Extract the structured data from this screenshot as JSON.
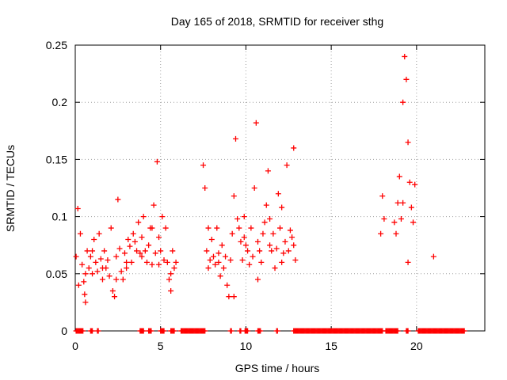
{
  "chart_data": {
    "type": "scatter",
    "title": "Day 165 of 2018, SRMTID for receiver sthg",
    "xlabel": "GPS time / hours",
    "ylabel": "SRMTID / TECUs",
    "xlim": [
      0,
      24
    ],
    "ylim": [
      0,
      0.25
    ],
    "xticks": [
      0,
      5,
      10,
      15,
      20
    ],
    "xtick_labels": [
      "0",
      "5",
      "10",
      "15",
      "20"
    ],
    "yticks": [
      0,
      0.05,
      0.1,
      0.15,
      0.2,
      0.25
    ],
    "ytick_labels": [
      "0",
      "0.05",
      "0.1",
      "0.15",
      "0.2",
      "0.25"
    ],
    "grid": true,
    "marker": "+",
    "series": [
      {
        "name": "SRMTID",
        "color": "#ff0000",
        "x": [
          0.05,
          0.15,
          0.3,
          0.4,
          0.5,
          0.55,
          0.6,
          0.7,
          0.8,
          0.9,
          1.0,
          1.1,
          1.2,
          1.3,
          1.4,
          1.5,
          1.6,
          1.7,
          1.8,
          1.9,
          2.0,
          2.1,
          2.2,
          2.3,
          2.4,
          2.5,
          2.6,
          2.7,
          2.8,
          2.9,
          3.0,
          3.1,
          3.2,
          3.3,
          3.4,
          3.5,
          3.6,
          3.7,
          3.8,
          3.9,
          4.0,
          4.1,
          4.2,
          4.3,
          4.4,
          4.5,
          4.6,
          4.7,
          4.8,
          4.9,
          5.0,
          5.1,
          5.2,
          5.3,
          5.4,
          5.5,
          5.6,
          5.7,
          5.8,
          5.9,
          7.5,
          7.6,
          7.7,
          7.8,
          7.9,
          8.0,
          8.1,
          8.2,
          8.3,
          8.4,
          8.5,
          8.6,
          8.7,
          8.8,
          8.9,
          9.0,
          9.1,
          9.2,
          9.3,
          9.4,
          9.5,
          9.6,
          9.7,
          9.8,
          9.9,
          10.0,
          10.1,
          10.2,
          10.3,
          10.4,
          10.5,
          10.6,
          10.7,
          10.8,
          10.9,
          11.0,
          11.1,
          11.2,
          11.3,
          11.4,
          11.5,
          11.6,
          11.7,
          11.8,
          11.9,
          12.0,
          12.1,
          12.2,
          12.3,
          12.4,
          12.5,
          12.6,
          12.7,
          12.8,
          12.9,
          17.9,
          18.0,
          18.1,
          18.7,
          18.8,
          18.9,
          19.0,
          19.1,
          19.2,
          19.3,
          19.4,
          19.5,
          19.6,
          19.7,
          19.8,
          19.9,
          21.0,
          0.2,
          0.6,
          1.0,
          1.6,
          2.4,
          3.0,
          3.9,
          4.5,
          4.9,
          5.6,
          7.8,
          8.4,
          9.3,
          9.9,
          10.7,
          11.4,
          12.1,
          12.8,
          19.2,
          19.5
        ],
        "y": [
          0.065,
          0.107,
          0.085,
          0.058,
          0.043,
          0.032,
          0.025,
          0.07,
          0.055,
          0.065,
          0.05,
          0.08,
          0.06,
          0.052,
          0.085,
          0.063,
          0.045,
          0.07,
          0.055,
          0.062,
          0.048,
          0.09,
          0.035,
          0.03,
          0.065,
          0.115,
          0.072,
          0.052,
          0.045,
          0.068,
          0.055,
          0.08,
          0.074,
          0.06,
          0.085,
          0.078,
          0.07,
          0.095,
          0.068,
          0.082,
          0.1,
          0.07,
          0.06,
          0.075,
          0.09,
          0.058,
          0.11,
          0.068,
          0.148,
          0.082,
          0.07,
          0.1,
          0.062,
          0.09,
          0.06,
          0.045,
          0.035,
          0.07,
          0.055,
          0.06,
          0.145,
          0.125,
          0.07,
          0.055,
          0.062,
          0.08,
          0.065,
          0.058,
          0.09,
          0.06,
          0.048,
          0.075,
          0.055,
          0.065,
          0.04,
          0.03,
          0.062,
          0.085,
          0.118,
          0.168,
          0.098,
          0.09,
          0.078,
          0.062,
          0.1,
          0.075,
          0.07,
          0.058,
          0.09,
          0.065,
          0.125,
          0.182,
          0.078,
          0.07,
          0.06,
          0.085,
          0.095,
          0.11,
          0.14,
          0.098,
          0.07,
          0.085,
          0.055,
          0.072,
          0.12,
          0.09,
          0.108,
          0.068,
          0.078,
          0.145,
          0.07,
          0.088,
          0.082,
          0.16,
          0.062,
          0.085,
          0.118,
          0.098,
          0.095,
          0.085,
          0.112,
          0.135,
          0.098,
          0.112,
          0.24,
          0.22,
          0.165,
          0.13,
          0.108,
          0.095,
          0.128,
          0.065,
          0.04,
          0.05,
          0.07,
          0.055,
          0.045,
          0.06,
          0.065,
          0.09,
          0.058,
          0.05,
          0.09,
          0.068,
          0.03,
          0.082,
          0.045,
          0.075,
          0.06,
          0.075,
          0.2,
          0.06
        ],
        "zero_ranges": [
          [
            0.05,
            0.45
          ],
          [
            0.9,
            1.0
          ],
          [
            1.3,
            1.35
          ],
          [
            3.8,
            4.0
          ],
          [
            4.3,
            4.45
          ],
          [
            5.0,
            5.2
          ],
          [
            5.6,
            5.8
          ],
          [
            6.2,
            7.6
          ],
          [
            9.1,
            9.15
          ],
          [
            9.65,
            9.7
          ],
          [
            9.95,
            10.1
          ],
          [
            10.7,
            10.85
          ],
          [
            11.8,
            11.85
          ],
          [
            12.8,
            18.0
          ],
          [
            18.2,
            18.9
          ],
          [
            19.4,
            19.5
          ],
          [
            20.1,
            22.8
          ]
        ]
      }
    ]
  }
}
